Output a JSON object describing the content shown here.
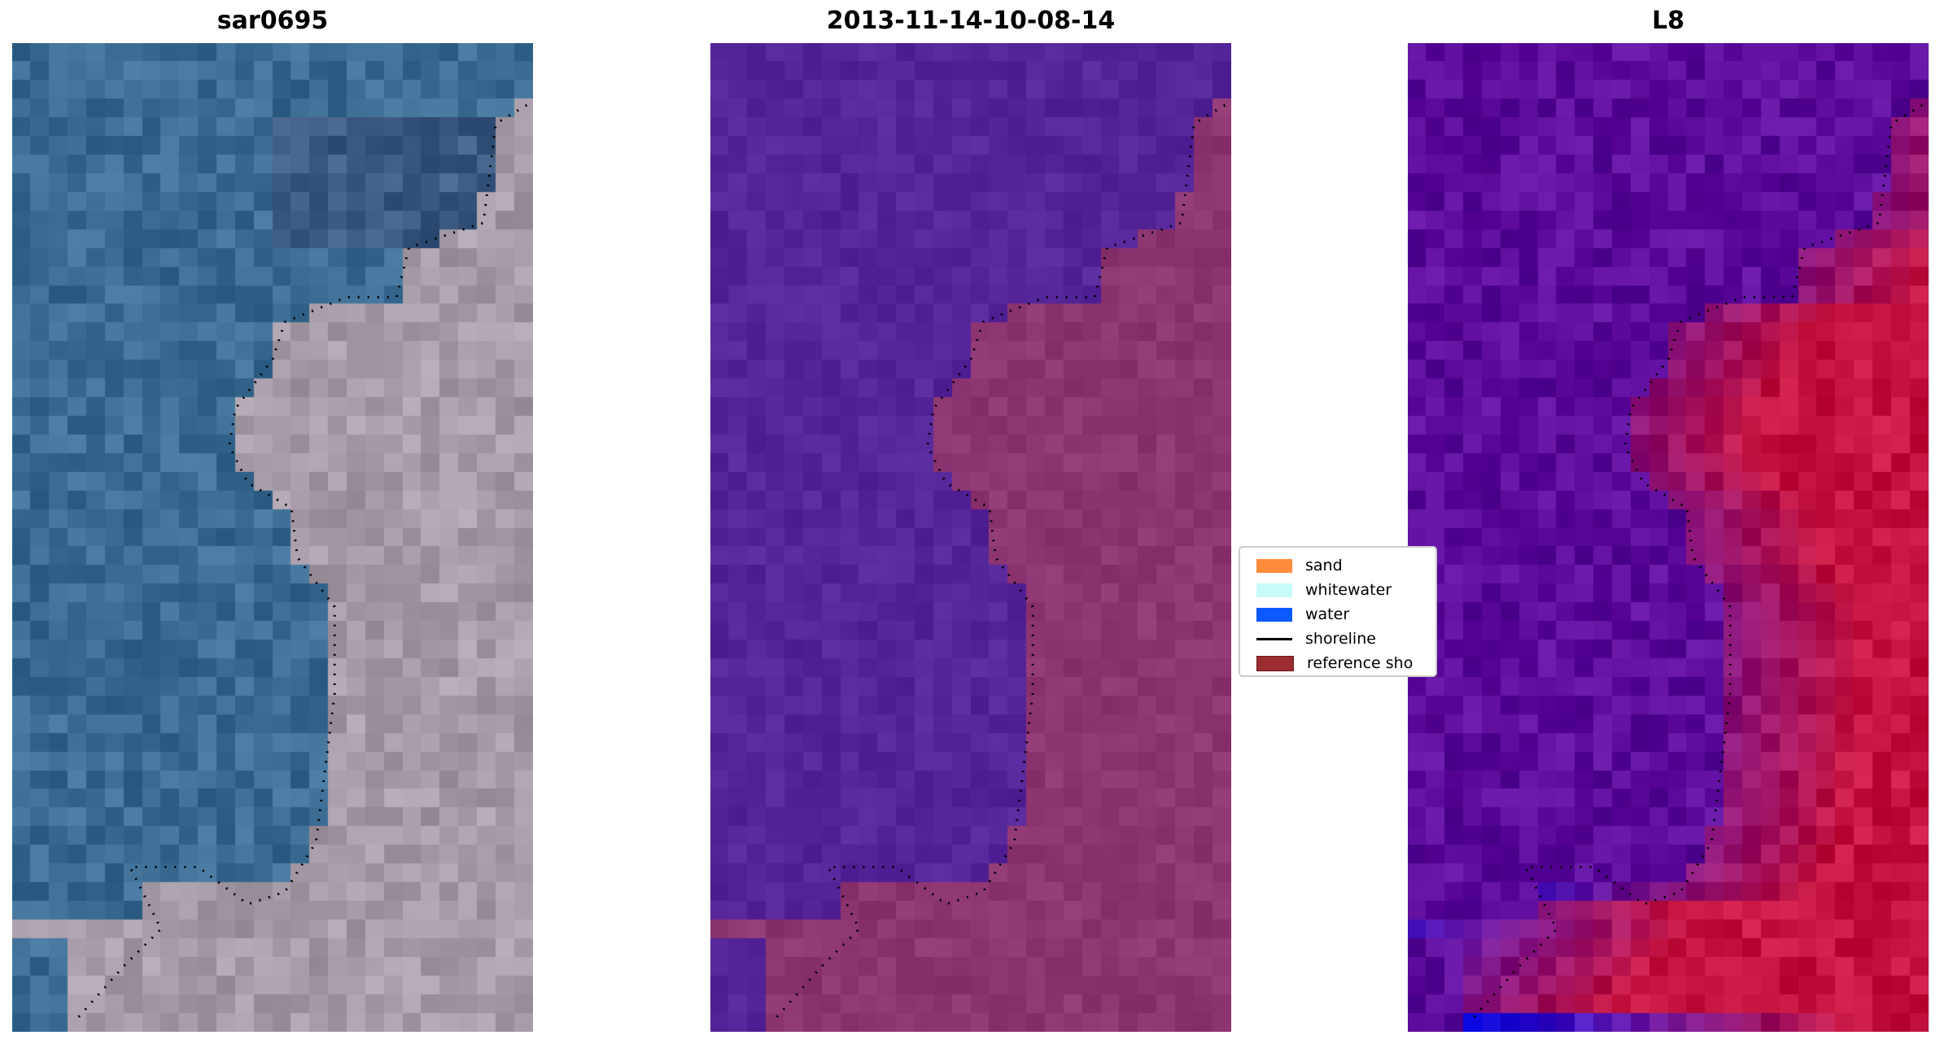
{
  "panels": [
    {
      "title": "sar0695",
      "style": "rgb",
      "water": "#3b6d94",
      "land": "#a69ba6"
    },
    {
      "title": "2013-11-14-10-08-14",
      "style": "classified",
      "water": "#55259a",
      "land": "#8d3672"
    },
    {
      "title": "L8",
      "style": "index",
      "water": "#5b0a9b",
      "land": "#c4133f"
    }
  ],
  "legend": {
    "items": [
      {
        "label": "sand",
        "color": "#ff8c3c",
        "type": "patch"
      },
      {
        "label": "whitewater",
        "color": "#c8fafa",
        "type": "patch"
      },
      {
        "label": "water",
        "color": "#0a5aff",
        "type": "patch"
      },
      {
        "label": "shoreline",
        "color": "#000000",
        "type": "line"
      },
      {
        "label": "reference sho",
        "color": "#9b2d30",
        "type": "patch"
      }
    ]
  }
}
